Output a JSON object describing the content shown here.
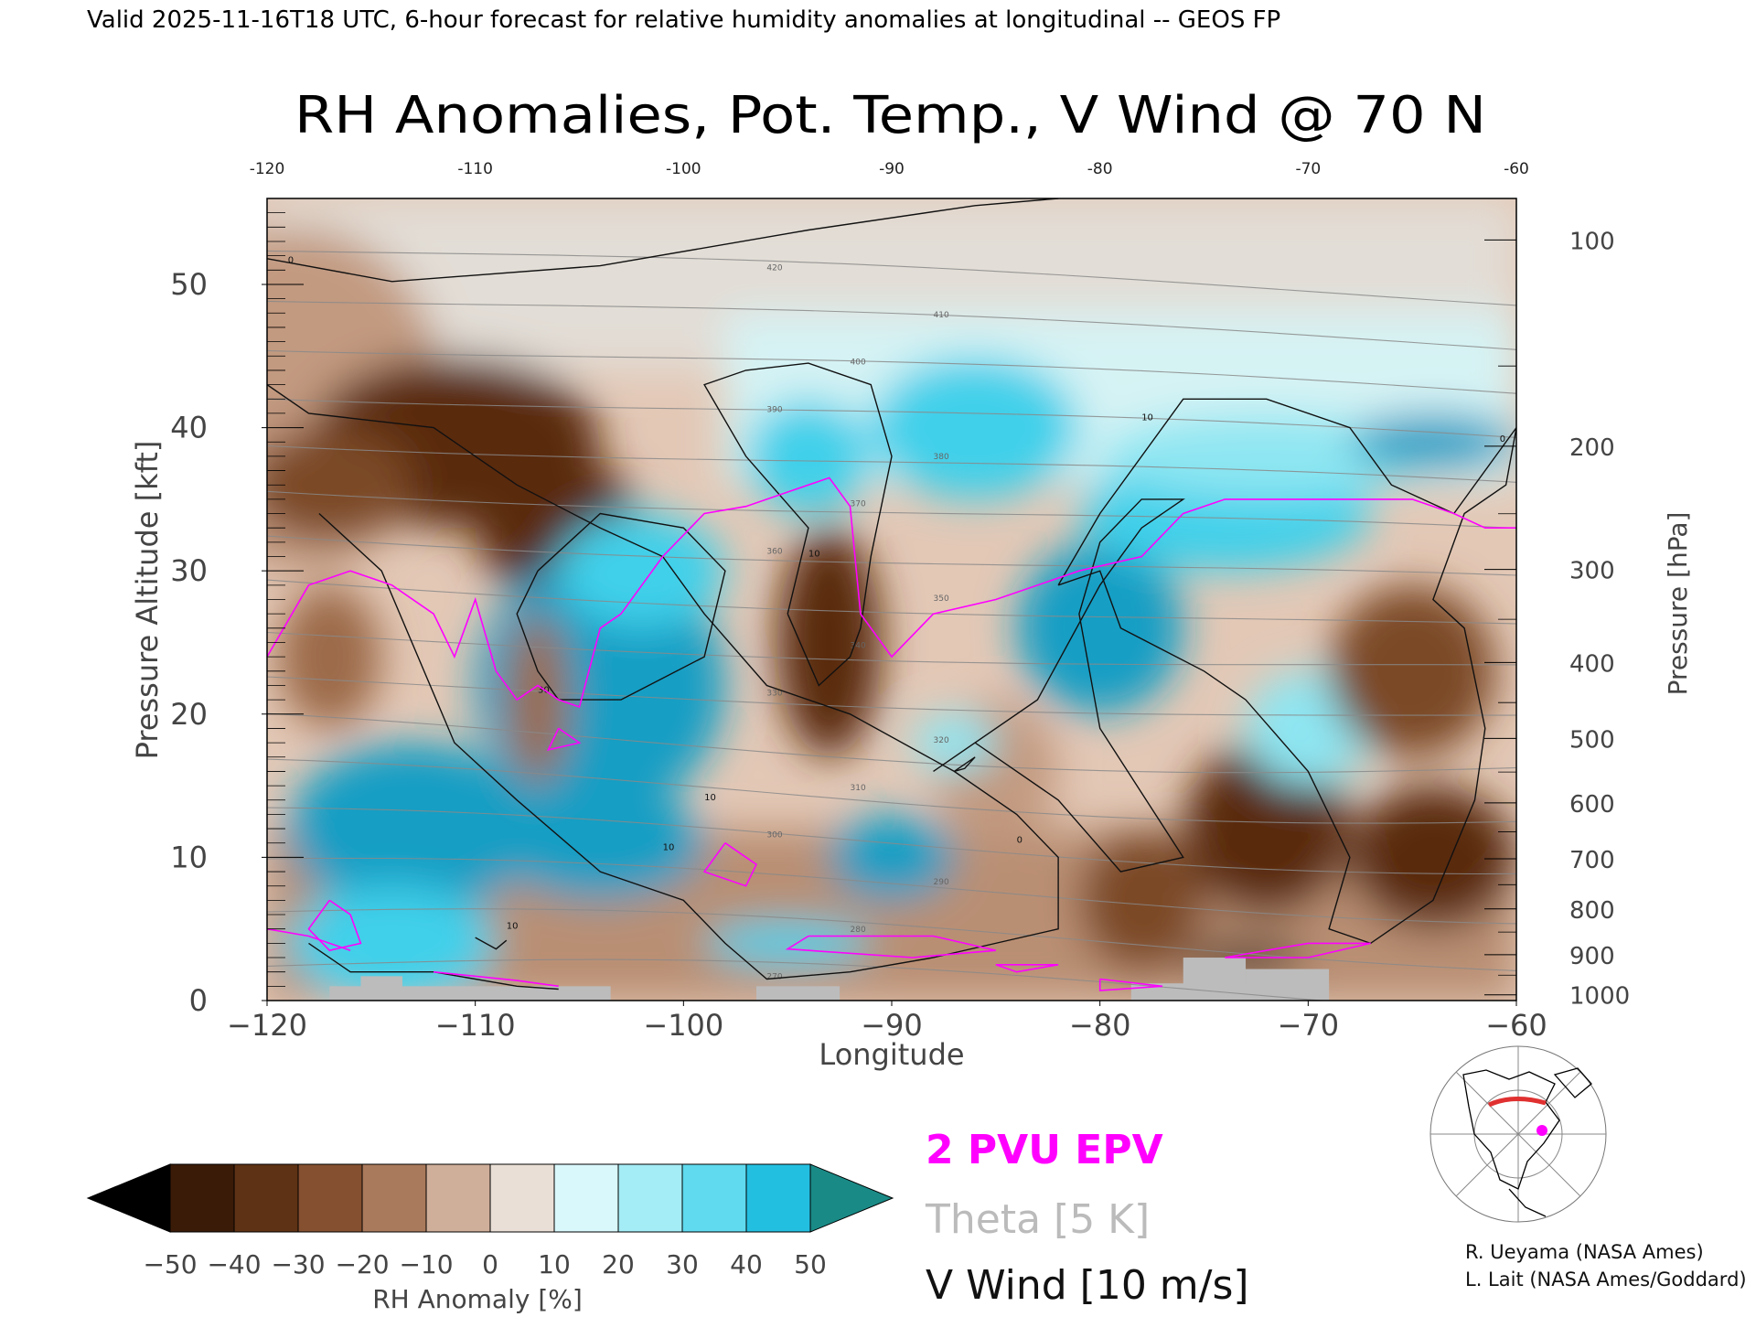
{
  "header": {
    "valid_line": "Valid 2025-11-16T18 UTC, 6-hour forecast for relative humidity anomalies at longitudinal -- GEOS FP",
    "title": "RH Anomalies, Pot. Temp., V Wind @ 70 N"
  },
  "legend": {
    "epv": "2 PVU EPV",
    "theta": "Theta [5 K]",
    "vwind": "V Wind [10 m/s]"
  },
  "colorbar": {
    "label": "RH Anomaly [%]",
    "ticks": [
      "-50",
      "-40",
      "-30",
      "-20",
      "-10",
      "0",
      "10",
      "20",
      "30",
      "40",
      "50"
    ],
    "colors": [
      "#2b1404",
      "#4a250c",
      "#6b3a18",
      "#8d5730",
      "#b07d5a",
      "#d9b8a3",
      "#eadcd2",
      "#e9fbfd",
      "#b7f1f7",
      "#7fe3f1",
      "#39cde8",
      "#17aed0",
      "#0f8db0",
      "#1a8a86"
    ],
    "low_extend_color": "#000000",
    "high_extend_color": "#1a8a86"
  },
  "credits": {
    "line1": "R. Ueyama (NASA Ames)",
    "line2": "L. Lait (NASA Ames/Goddard)"
  },
  "chart_data": {
    "type": "heatmap",
    "title": "RH Anomalies, Pot. Temp., V Wind @ 70 N",
    "xlabel": "Longitude",
    "ylabel": "Pressure Altitude [kft]",
    "y2label": "Pressure [hPa]",
    "xlim": [
      -120,
      -60
    ],
    "ylim": [
      0,
      56
    ],
    "x_ticks": [
      -120,
      -110,
      -100,
      -90,
      -80,
      -70,
      -60
    ],
    "x_ticklabels": [
      "−120",
      "−110",
      "−100",
      "−90",
      "−80",
      "−70",
      "−60"
    ],
    "x_top_ticklabels": [
      "-120",
      "-110",
      "-100",
      "-90",
      "-80",
      "-70",
      "-60"
    ],
    "y_ticks": [
      0,
      10,
      20,
      30,
      40,
      50
    ],
    "y_ticklabels": [
      "0",
      "10",
      "20",
      "30",
      "40",
      "50"
    ],
    "pressure_ticks": [
      {
        "hPa": "100",
        "kft": 53.1
      },
      {
        "hPa": "200",
        "kft": 38.7
      },
      {
        "hPa": "300",
        "kft": 30.1
      },
      {
        "hPa": "400",
        "kft": 23.6
      },
      {
        "hPa": "500",
        "kft": 18.3
      },
      {
        "hPa": "600",
        "kft": 13.8
      },
      {
        "hPa": "700",
        "kft": 9.9
      },
      {
        "hPa": "800",
        "kft": 6.4
      },
      {
        "hPa": "900",
        "kft": 3.2
      },
      {
        "hPa": "1000",
        "kft": 0.4
      }
    ],
    "rh_anomaly_regions": [
      {
        "lon": -118.5,
        "kft": 42,
        "rh": -10,
        "rx": 7,
        "ry": 12
      },
      {
        "lon": -111,
        "kft": 39,
        "rh": -40,
        "rx": 7,
        "ry": 6
      },
      {
        "lon": -106,
        "kft": 33,
        "rh": -40,
        "rx": 4,
        "ry": 5
      },
      {
        "lon": -117,
        "kft": 36,
        "rh": -30,
        "rx": 4,
        "ry": 4
      },
      {
        "lon": -104,
        "kft": 22,
        "rh": 40,
        "rx": 6,
        "ry": 9
      },
      {
        "lon": -102,
        "kft": 30,
        "rh": 30,
        "rx": 4,
        "ry": 4
      },
      {
        "lon": -113,
        "kft": 12,
        "rh": 40,
        "rx": 6,
        "ry": 6
      },
      {
        "lon": -104,
        "kft": 11,
        "rh": 40,
        "rx": 5,
        "ry": 4
      },
      {
        "lon": -114,
        "kft": 4,
        "rh": 30,
        "rx": 5,
        "ry": 4
      },
      {
        "lon": -117,
        "kft": 24,
        "rh": -20,
        "rx": 2.5,
        "ry": 5
      },
      {
        "lon": -107,
        "kft": 21,
        "rh": -20,
        "rx": 1.5,
        "ry": 6
      },
      {
        "lon": -93,
        "kft": 25,
        "rh": -40,
        "rx": 2.5,
        "ry": 8
      },
      {
        "lon": -94,
        "kft": 38,
        "rh": 30,
        "rx": 3,
        "ry": 4
      },
      {
        "lon": -86,
        "kft": 40,
        "rh": 30,
        "rx": 5,
        "ry": 5
      },
      {
        "lon": -85,
        "kft": 16,
        "rh": -10,
        "rx": 3,
        "ry": 5
      },
      {
        "lon": -90,
        "kft": 10,
        "rh": 40,
        "rx": 3,
        "ry": 3
      },
      {
        "lon": -87,
        "kft": 18,
        "rh": 20,
        "rx": 2,
        "ry": 2
      },
      {
        "lon": -80,
        "kft": 26,
        "rh": 40,
        "rx": 4,
        "ry": 6
      },
      {
        "lon": -74,
        "kft": 34,
        "rh": 30,
        "rx": 7,
        "ry": 4
      },
      {
        "lon": -72,
        "kft": 38,
        "rh": 20,
        "rx": 8,
        "ry": 3
      },
      {
        "lon": -64,
        "kft": 39,
        "rh": 40,
        "rx": 4,
        "ry": 2
      },
      {
        "lon": -72,
        "kft": 12,
        "rh": -40,
        "rx": 4,
        "ry": 6
      },
      {
        "lon": -64,
        "kft": 10,
        "rh": -40,
        "rx": 4,
        "ry": 5
      },
      {
        "lon": -78,
        "kft": 7,
        "rh": -30,
        "rx": 3,
        "ry": 5
      },
      {
        "lon": -70,
        "kft": 19,
        "rh": 20,
        "rx": 3,
        "ry": 4
      },
      {
        "lon": -65,
        "kft": 23,
        "rh": -30,
        "rx": 4,
        "ry": 6
      },
      {
        "lon": -73,
        "kft": 3,
        "rh": -50,
        "rx": 3,
        "ry": 1
      },
      {
        "lon": -95,
        "kft": 4,
        "rh": 30,
        "rx": 4,
        "ry": 1.5
      }
    ],
    "terrain": [
      {
        "lon0": -117,
        "lon1": -103.5,
        "kft": 1
      },
      {
        "lon0": -115.5,
        "lon1": -113.5,
        "kft": 1.7
      },
      {
        "lon0": -96.5,
        "lon1": -92.5,
        "kft": 1
      },
      {
        "lon0": -78.5,
        "lon1": -69,
        "kft": 1.2
      },
      {
        "lon0": -76,
        "lon1": -73,
        "kft": 3
      },
      {
        "lon0": -73,
        "lon1": -69,
        "kft": 2.2
      }
    ],
    "theta_levels_K": [
      270,
      280,
      290,
      300,
      310,
      320,
      330,
      340,
      350,
      360,
      370,
      380,
      390,
      400,
      410,
      420
    ],
    "vwind_contour_labels": [
      "0",
      "10",
      "30",
      "10",
      "10",
      "0",
      "10",
      "10",
      "0"
    ],
    "epv_pvu": 2
  }
}
